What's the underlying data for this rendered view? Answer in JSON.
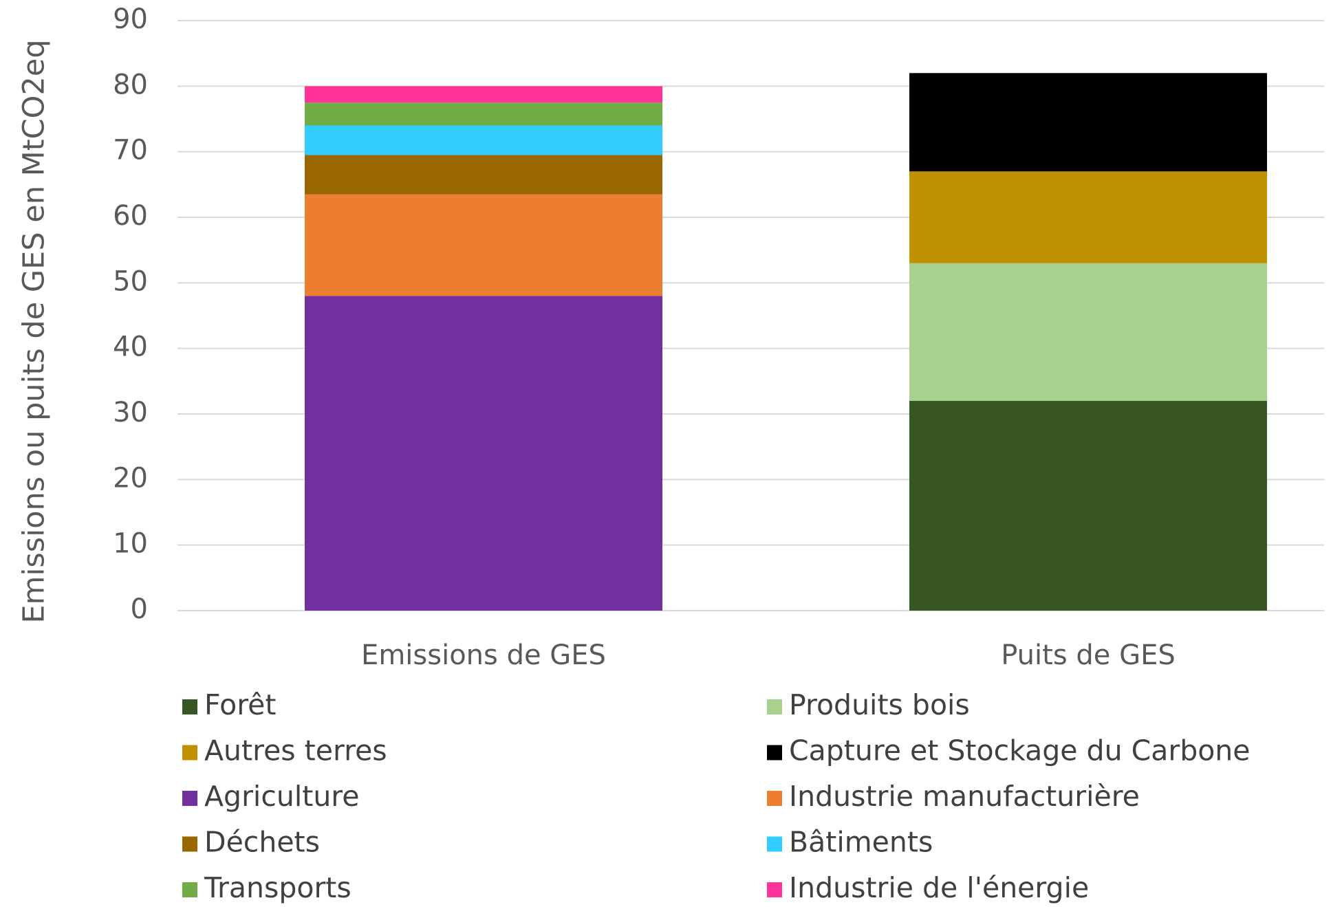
{
  "chart_data": {
    "type": "bar",
    "stacked": true,
    "ylabel": "Emissions ou puits de GES en MtCO2eq",
    "xlabel": "",
    "ylim": [
      0,
      90
    ],
    "yticks": [
      0,
      10,
      20,
      30,
      40,
      50,
      60,
      70,
      80,
      90
    ],
    "grid": true,
    "legend_position": "bottom",
    "categories": [
      "Emissions de GES",
      "Puits de GES"
    ],
    "series": [
      {
        "name": "Forêt",
        "color": "#375623",
        "values": [
          0,
          32
        ]
      },
      {
        "name": "Produits bois",
        "color": "#a9d18e",
        "values": [
          0,
          21
        ]
      },
      {
        "name": "Autres terres",
        "color": "#bf9000",
        "values": [
          0,
          14
        ]
      },
      {
        "name": "Capture et Stockage du Carbone",
        "color": "#000000",
        "values": [
          0,
          15
        ]
      },
      {
        "name": "Agriculture",
        "color": "#7030a0",
        "values": [
          48,
          0
        ]
      },
      {
        "name": "Industrie manufacturière",
        "color": "#ed7d31",
        "values": [
          15.5,
          0
        ]
      },
      {
        "name": "Déchets",
        "color": "#996600",
        "values": [
          6,
          0
        ]
      },
      {
        "name": "Bâtiments",
        "color": "#33ccff",
        "values": [
          4.5,
          0
        ]
      },
      {
        "name": "Transports",
        "color": "#70ad47",
        "values": [
          3.5,
          0
        ]
      },
      {
        "name": "Industrie de l'énergie",
        "color": "#ff3399",
        "values": [
          2.5,
          0
        ]
      }
    ],
    "legend_order": [
      "Forêt",
      "Produits bois",
      "Autres terres",
      "Capture et Stockage du Carbone",
      "Agriculture",
      "Industrie manufacturière",
      "Déchets",
      "Bâtiments",
      "Transports",
      "Industrie de l'énergie"
    ]
  }
}
